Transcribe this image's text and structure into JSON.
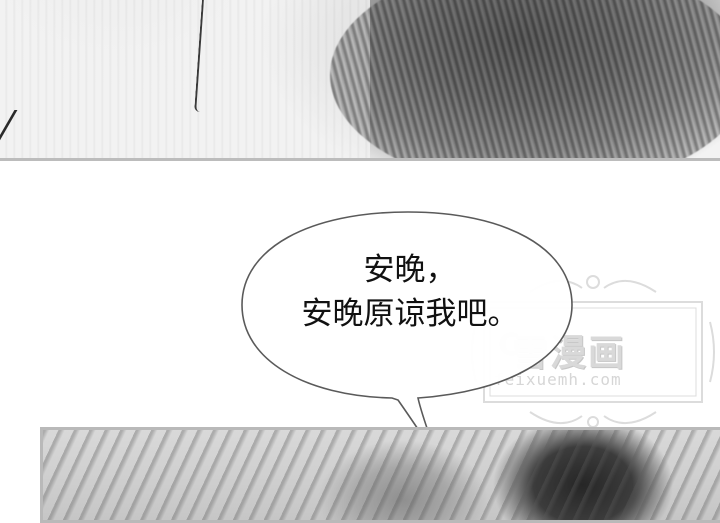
{
  "speech_bubble": {
    "lines": [
      "安晚，",
      "安晚原谅我吧。"
    ]
  },
  "watermark": {
    "logo_text": "雪漫画",
    "url_text": "feixuemh.com"
  }
}
